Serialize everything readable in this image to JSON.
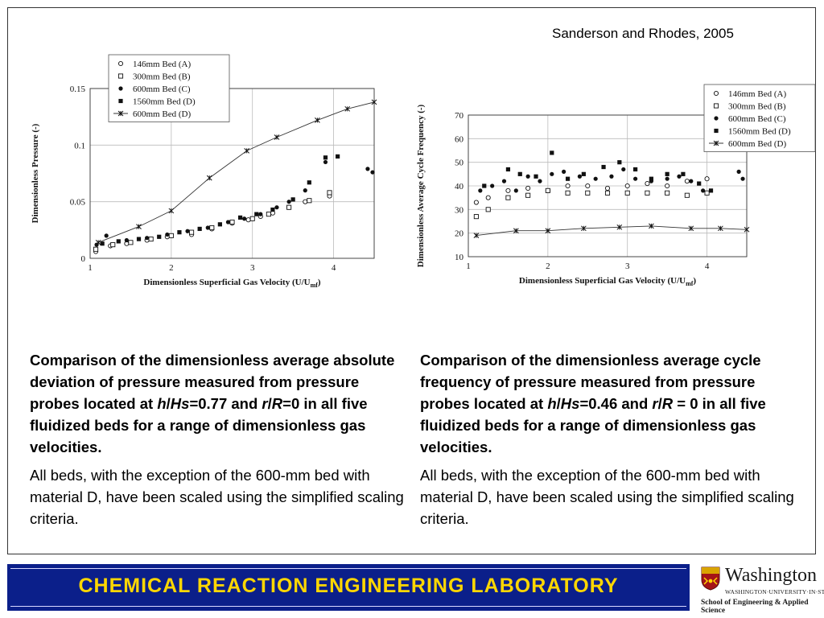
{
  "citation": "Sanderson and Rhodes, 2005",
  "left_caption": {
    "bold_parts": [
      "Comparison of the dimensionless average absolute deviation of pressure measured from pressure probes located at ",
      "h",
      "/",
      "Hs",
      "=0.77 and ",
      "r",
      "/",
      "R",
      "=0 in all five fluidized beds for a range of dimensionless gas velocities."
    ],
    "note": "All beds, with the exception of the 600-mm bed with material D, have been scaled using the simplified scaling criteria."
  },
  "right_caption": {
    "bold_parts": [
      "Comparison of the dimensionless average cycle frequency of pressure measured from pressure probes located at ",
      "h",
      "/",
      "Hs",
      "=0.46 and ",
      "r",
      "/",
      "R",
      " = 0 in all five fluidized beds for a range of dimensionless gas velocities."
    ],
    "note": "All beds, with the exception of the 600-mm bed with material D, have been scaled using the simplified scaling criteria."
  },
  "banner": {
    "title": "CHEMICAL  REACTION  ENGINEERING  LABORATORY"
  },
  "logo": {
    "name": "Washington",
    "university": "WASHINGTON·UNIVERSITY·IN·ST·LOUIS",
    "school": "School of Engineering & Applied Science"
  },
  "colors": {
    "banner_bg": "#0b1f8a",
    "banner_text": "#ffd700"
  },
  "chart_data": [
    {
      "type": "scatter",
      "xlabel": "Dimensionless Superficial Gas Velocity (U/U",
      "xlabel_sub": "mf",
      "xlabel_end": ")",
      "ylabel": "Dimensionless Pressure (-)",
      "xlim": [
        1,
        4.5
      ],
      "ylim": [
        0,
        0.15
      ],
      "xticks": [
        1,
        2,
        3,
        4
      ],
      "yticks": [
        0,
        0.05,
        0.1,
        0.15
      ],
      "ytick_labels": [
        "0",
        "0.05",
        "0.1",
        "0.15"
      ],
      "grid": true,
      "legend_position": "top-left",
      "series": [
        {
          "name": "146mm Bed (A)",
          "marker": "open-circle",
          "x": [
            1.07,
            1.25,
            1.45,
            1.7,
            1.95,
            2.25,
            2.5,
            2.75,
            2.95,
            3.1,
            3.25,
            3.45,
            3.65,
            3.95
          ],
          "y": [
            0.006,
            0.011,
            0.013,
            0.016,
            0.019,
            0.021,
            0.026,
            0.031,
            0.034,
            0.037,
            0.04,
            0.045,
            0.05,
            0.055
          ]
        },
        {
          "name": "300mm Bed (B)",
          "marker": "open-square",
          "x": [
            1.07,
            1.28,
            1.5,
            1.75,
            2.0,
            2.25,
            2.5,
            2.75,
            3.0,
            3.2,
            3.45,
            3.7,
            3.95
          ],
          "y": [
            0.008,
            0.012,
            0.014,
            0.017,
            0.02,
            0.023,
            0.027,
            0.032,
            0.035,
            0.039,
            0.045,
            0.051,
            0.058
          ]
        },
        {
          "name": "600mm Bed (C)",
          "marker": "filled-circle",
          "x": [
            1.08,
            1.2,
            1.45,
            1.7,
            1.95,
            2.2,
            2.45,
            2.7,
            2.9,
            3.1,
            3.3,
            3.45,
            3.65,
            3.9,
            4.42,
            4.48
          ],
          "y": [
            0.012,
            0.02,
            0.016,
            0.018,
            0.021,
            0.024,
            0.027,
            0.032,
            0.035,
            0.039,
            0.045,
            0.05,
            0.06,
            0.085,
            0.079,
            0.076
          ]
        },
        {
          "name": "1560mm Bed (D)",
          "marker": "filled-square",
          "x": [
            1.15,
            1.35,
            1.6,
            1.85,
            2.1,
            2.35,
            2.6,
            2.85,
            3.05,
            3.25,
            3.5,
            3.7,
            3.9,
            4.05
          ],
          "y": [
            0.013,
            0.015,
            0.017,
            0.019,
            0.023,
            0.026,
            0.03,
            0.036,
            0.039,
            0.043,
            0.052,
            0.067,
            0.089,
            0.09
          ]
        },
        {
          "name": "600mm Bed (D)",
          "marker": "x-line",
          "x": [
            1.1,
            1.6,
            2.0,
            2.47,
            2.93,
            3.3,
            3.8,
            4.17,
            4.5
          ],
          "y": [
            0.014,
            0.028,
            0.042,
            0.071,
            0.095,
            0.107,
            0.122,
            0.132,
            0.138
          ]
        }
      ]
    },
    {
      "type": "scatter",
      "xlabel": "Dimensionless Superficial Gas Velocity (U/U",
      "xlabel_sub": "mf",
      "xlabel_end": ")",
      "ylabel": "Dimensionless Average Cycle Frequency (-)",
      "xlim": [
        1,
        4.5
      ],
      "ylim": [
        10,
        70
      ],
      "xticks": [
        1,
        2,
        3,
        4
      ],
      "yticks": [
        10,
        20,
        30,
        40,
        50,
        60,
        70
      ],
      "ytick_labels": [
        "10",
        "20",
        "30",
        "40",
        "50",
        "60",
        "70"
      ],
      "grid": true,
      "legend_position": "top-right",
      "series": [
        {
          "name": "146mm Bed (A)",
          "marker": "open-circle",
          "x": [
            1.1,
            1.25,
            1.5,
            1.75,
            2.0,
            2.25,
            2.5,
            2.75,
            3.0,
            3.25,
            3.5,
            3.75,
            4.0
          ],
          "y": [
            33,
            35,
            38,
            39,
            38,
            40,
            40,
            39,
            40,
            41,
            40,
            42,
            43
          ]
        },
        {
          "name": "300mm Bed (B)",
          "marker": "open-square",
          "x": [
            1.1,
            1.25,
            1.5,
            1.75,
            2.0,
            2.25,
            2.5,
            2.75,
            3.0,
            3.25,
            3.5,
            3.75,
            4.0
          ],
          "y": [
            27,
            30,
            35,
            36,
            38,
            37,
            37,
            37,
            37,
            37,
            37,
            36,
            37
          ]
        },
        {
          "name": "600mm Bed (C)",
          "marker": "filled-circle",
          "x": [
            1.15,
            1.3,
            1.45,
            1.6,
            1.75,
            1.9,
            2.05,
            2.2,
            2.4,
            2.6,
            2.8,
            2.95,
            3.1,
            3.3,
            3.5,
            3.65,
            3.8,
            3.95,
            4.4,
            4.45
          ],
          "y": [
            38,
            40,
            42,
            38,
            44,
            42,
            45,
            46,
            44,
            43,
            44,
            47,
            43,
            42,
            43,
            44,
            42,
            38,
            46,
            43
          ]
        },
        {
          "name": "1560mm Bed (D)",
          "marker": "filled-square",
          "x": [
            1.2,
            1.5,
            1.65,
            1.85,
            2.05,
            2.25,
            2.45,
            2.7,
            2.9,
            3.1,
            3.3,
            3.5,
            3.7,
            3.9,
            4.05
          ],
          "y": [
            40,
            47,
            45,
            44,
            54,
            43,
            45,
            48,
            50,
            47,
            43,
            45,
            45,
            41,
            38
          ]
        },
        {
          "name": "600mm Bed (D)",
          "marker": "x-line",
          "x": [
            1.1,
            1.6,
            2.0,
            2.45,
            2.9,
            3.3,
            3.8,
            4.17,
            4.5
          ],
          "y": [
            19,
            21,
            21,
            22,
            22.5,
            23,
            22,
            22,
            21.5
          ]
        }
      ]
    }
  ]
}
